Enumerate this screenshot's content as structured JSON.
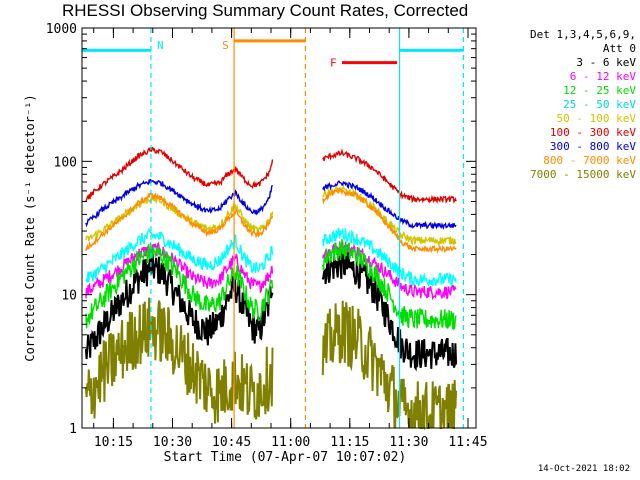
{
  "header": {
    "title": "RHESSI Observing Summary Count Rates, Corrected"
  },
  "legend": {
    "detectors": "Det 1,3,4,5,6,9,",
    "attenuator": "Att 0",
    "entries": [
      {
        "label": "3 - 6 keV",
        "color": "#000000"
      },
      {
        "label": "6 - 12 keV",
        "color": "#ff00ff"
      },
      {
        "label": "12 - 25 keV",
        "color": "#00dd00"
      },
      {
        "label": "25 - 50 keV",
        "color": "#00ffff"
      },
      {
        "label": "50 - 100 keV",
        "color": "#d4c400"
      },
      {
        "label": "100 - 300 keV",
        "color": "#e00000"
      },
      {
        "label": "300 - 800 keV",
        "color": "#0000e0"
      },
      {
        "label": "800 - 7000 keV",
        "color": "#ff8c00"
      },
      {
        "label": "7000 - 15000 keV",
        "color": "#808000"
      }
    ]
  },
  "footer": {
    "timestamp": "14-Oct-2021 18:02"
  },
  "chart_data": {
    "type": "line",
    "title": "RHESSI Observing Summary Count Rates, Corrected",
    "xlabel": "Start Time (07-Apr-07 10:07:02)",
    "ylabel": "Corrected Count Rate (s⁻¹ detector⁻¹)",
    "yscale": "log",
    "ylim": [
      1,
      1000
    ],
    "xlim_minutes": [
      0,
      100
    ],
    "x_ticks": [
      {
        "minute": 7.97,
        "label": "10:15"
      },
      {
        "minute": 22.97,
        "label": "10:30"
      },
      {
        "minute": 37.97,
        "label": "10:45"
      },
      {
        "minute": 52.97,
        "label": "11:00"
      },
      {
        "minute": 67.97,
        "label": "11:15"
      },
      {
        "minute": 82.97,
        "label": "11:30"
      },
      {
        "minute": 97.97,
        "label": "11:45"
      }
    ],
    "y_ticks": [
      {
        "value": 1,
        "label": "1"
      },
      {
        "value": 10,
        "label": "10"
      },
      {
        "value": 100,
        "label": "100"
      },
      {
        "value": 1000,
        "label": "1000"
      }
    ],
    "data_gap_minutes": [
      48.5,
      61.0
    ],
    "markers": {
      "night": [
        {
          "type": "bar",
          "from": 0,
          "to": 17.5,
          "level": 680,
          "color": "#00e8ff"
        },
        {
          "type": "vline",
          "at": 17.5,
          "style": "dashed",
          "color": "#00e8ff",
          "label": "N"
        },
        {
          "type": "vline",
          "at": 80.6,
          "style": "solid",
          "color": "#00e8ff"
        },
        {
          "type": "bar",
          "from": 80.6,
          "to": 96.8,
          "level": 680,
          "color": "#00e8ff"
        },
        {
          "type": "vline",
          "at": 96.8,
          "style": "dashed",
          "color": "#00e8ff"
        }
      ],
      "saa": [
        {
          "type": "vline",
          "at": 38.6,
          "style": "solid",
          "color": "#ff8c00",
          "label": "S"
        },
        {
          "type": "bar",
          "from": 38.6,
          "to": 56.7,
          "level": 800,
          "color": "#ff8c00"
        },
        {
          "type": "vline",
          "at": 56.7,
          "style": "dashed",
          "color": "#ff8c00"
        }
      ],
      "flare": [
        {
          "type": "bar",
          "from": 66.0,
          "to": 80.0,
          "level": 550,
          "color": "#ff0000",
          "label": "F"
        }
      ]
    },
    "series": [
      {
        "name": "3 - 6 keV",
        "color": "#000000",
        "noise": 0.12,
        "points": [
          [
            1,
            3.6
          ],
          [
            5,
            5.5
          ],
          [
            10,
            9
          ],
          [
            14,
            13
          ],
          [
            17.5,
            16
          ],
          [
            20,
            15
          ],
          [
            24,
            10
          ],
          [
            28,
            6.5
          ],
          [
            32,
            5.2
          ],
          [
            35,
            6.5
          ],
          [
            37,
            9.5
          ],
          [
            39,
            11.5
          ],
          [
            41,
            8
          ],
          [
            43,
            5.8
          ],
          [
            45,
            5.3
          ],
          [
            47.5,
            8.5
          ],
          [
            48.3,
            13
          ],
          [
            61.3,
            15
          ],
          [
            63,
            16
          ],
          [
            66,
            17
          ],
          [
            70,
            15
          ],
          [
            74,
            11
          ],
          [
            78,
            6.5
          ],
          [
            81,
            4.2
          ],
          [
            84,
            3.6
          ],
          [
            90,
            3.6
          ],
          [
            95,
            3.6
          ]
        ]
      },
      {
        "name": "6 - 12 keV",
        "color": "#ff00ff",
        "noise": 0.05,
        "points": [
          [
            1,
            10.5
          ],
          [
            5,
            12.5
          ],
          [
            10,
            16
          ],
          [
            14,
            20
          ],
          [
            17.5,
            22
          ],
          [
            20,
            21.5
          ],
          [
            24,
            17.5
          ],
          [
            28,
            13.5
          ],
          [
            32,
            12
          ],
          [
            35,
            13
          ],
          [
            37,
            16
          ],
          [
            39,
            18.5
          ],
          [
            41,
            14.5
          ],
          [
            43,
            12
          ],
          [
            45,
            11.5
          ],
          [
            47.5,
            14
          ],
          [
            48.3,
            16
          ],
          [
            61.3,
            20
          ],
          [
            63,
            21.5
          ],
          [
            66,
            23
          ],
          [
            70,
            21
          ],
          [
            74,
            17.5
          ],
          [
            78,
            14
          ],
          [
            81,
            11.5
          ],
          [
            84,
            10.5
          ],
          [
            90,
            10.5
          ],
          [
            95,
            10.5
          ]
        ]
      },
      {
        "name": "12 - 25 keV",
        "color": "#00dd00",
        "noise": 0.08,
        "points": [
          [
            1,
            6.5
          ],
          [
            5,
            9
          ],
          [
            10,
            13.5
          ],
          [
            14,
            18
          ],
          [
            17.5,
            21
          ],
          [
            20,
            20
          ],
          [
            24,
            15
          ],
          [
            28,
            10
          ],
          [
            32,
            8
          ],
          [
            35,
            9
          ],
          [
            37,
            12
          ],
          [
            39,
            15
          ],
          [
            41,
            11
          ],
          [
            43,
            8
          ],
          [
            45,
            7.5
          ],
          [
            47.5,
            10.5
          ],
          [
            48.3,
            12
          ],
          [
            61.3,
            18
          ],
          [
            63,
            20.5
          ],
          [
            66,
            22
          ],
          [
            70,
            19.5
          ],
          [
            74,
            15
          ],
          [
            78,
            10
          ],
          [
            81,
            7
          ],
          [
            84,
            6.5
          ],
          [
            90,
            6.5
          ],
          [
            95,
            6.5
          ]
        ]
      },
      {
        "name": "25 - 50 keV",
        "color": "#00ffff",
        "noise": 0.05,
        "points": [
          [
            1,
            13
          ],
          [
            5,
            15.5
          ],
          [
            10,
            20
          ],
          [
            14,
            25
          ],
          [
            17.5,
            28
          ],
          [
            20,
            27
          ],
          [
            24,
            22.5
          ],
          [
            28,
            18.5
          ],
          [
            32,
            16.5
          ],
          [
            35,
            18
          ],
          [
            37,
            22
          ],
          [
            39,
            25.5
          ],
          [
            41,
            19
          ],
          [
            43,
            16
          ],
          [
            45,
            15.5
          ],
          [
            47.5,
            19
          ],
          [
            48.3,
            22
          ],
          [
            61.3,
            25
          ],
          [
            63,
            27
          ],
          [
            66,
            29
          ],
          [
            70,
            26
          ],
          [
            74,
            22
          ],
          [
            78,
            17.5
          ],
          [
            81,
            14.5
          ],
          [
            84,
            13
          ],
          [
            90,
            13
          ],
          [
            95,
            13
          ]
        ]
      },
      {
        "name": "50 - 100 keV",
        "color": "#d4c400",
        "noise": 0.03,
        "points": [
          [
            1,
            25.5
          ],
          [
            5,
            30
          ],
          [
            10,
            38
          ],
          [
            14,
            47
          ],
          [
            17.5,
            53
          ],
          [
            20,
            51
          ],
          [
            24,
            42
          ],
          [
            28,
            35
          ],
          [
            32,
            31
          ],
          [
            35,
            33
          ],
          [
            37,
            40
          ],
          [
            39,
            47
          ],
          [
            41,
            37
          ],
          [
            43,
            31.5
          ],
          [
            45,
            30
          ],
          [
            47.5,
            36
          ],
          [
            48.3,
            42
          ],
          [
            61.3,
            56
          ],
          [
            63,
            60
          ],
          [
            66,
            61
          ],
          [
            70,
            55
          ],
          [
            74,
            45
          ],
          [
            78,
            34
          ],
          [
            81,
            28
          ],
          [
            84,
            25.5
          ],
          [
            90,
            25.5
          ],
          [
            95,
            25.5
          ]
        ]
      },
      {
        "name": "100 - 300 keV",
        "color": "#e00000",
        "noise": 0.02,
        "points": [
          [
            1,
            52
          ],
          [
            5,
            66
          ],
          [
            10,
            85
          ],
          [
            14,
            108
          ],
          [
            17.5,
            122
          ],
          [
            20,
            118
          ],
          [
            24,
            95
          ],
          [
            28,
            76
          ],
          [
            32,
            66
          ],
          [
            35,
            69
          ],
          [
            37,
            80
          ],
          [
            39,
            88
          ],
          [
            41,
            74
          ],
          [
            43,
            66
          ],
          [
            45,
            67
          ],
          [
            47.5,
            82
          ],
          [
            48.3,
            100
          ],
          [
            61.3,
            104
          ],
          [
            63,
            110
          ],
          [
            66,
            115
          ],
          [
            70,
            104
          ],
          [
            74,
            88
          ],
          [
            78,
            68
          ],
          [
            81,
            56
          ],
          [
            84,
            52
          ],
          [
            90,
            52
          ],
          [
            95,
            52
          ]
        ]
      },
      {
        "name": "300 - 800 keV",
        "color": "#0000e0",
        "noise": 0.02,
        "points": [
          [
            1,
            34
          ],
          [
            5,
            43
          ],
          [
            10,
            54
          ],
          [
            14,
            65
          ],
          [
            17.5,
            71
          ],
          [
            20,
            69
          ],
          [
            24,
            58
          ],
          [
            28,
            48
          ],
          [
            32,
            42
          ],
          [
            35,
            44
          ],
          [
            37,
            52
          ],
          [
            39,
            58
          ],
          [
            41,
            48
          ],
          [
            43,
            42
          ],
          [
            45,
            42
          ],
          [
            47.5,
            52
          ],
          [
            48.3,
            66
          ],
          [
            61.3,
            62
          ],
          [
            63,
            66
          ],
          [
            66,
            69
          ],
          [
            70,
            63
          ],
          [
            74,
            53
          ],
          [
            78,
            42
          ],
          [
            81,
            36
          ],
          [
            84,
            33
          ],
          [
            90,
            33
          ],
          [
            95,
            33
          ]
        ]
      },
      {
        "name": "800 - 7000 keV",
        "color": "#ff8c00",
        "noise": 0.02,
        "points": [
          [
            1,
            22
          ],
          [
            5,
            28
          ],
          [
            10,
            37
          ],
          [
            14,
            48
          ],
          [
            17.5,
            56
          ],
          [
            20,
            53
          ],
          [
            24,
            43
          ],
          [
            28,
            34
          ],
          [
            32,
            29
          ],
          [
            35,
            31
          ],
          [
            37,
            37
          ],
          [
            39,
            42
          ],
          [
            41,
            34
          ],
          [
            43,
            29
          ],
          [
            45,
            28
          ],
          [
            47.5,
            34
          ],
          [
            48.3,
            40
          ],
          [
            61.3,
            52
          ],
          [
            63,
            57
          ],
          [
            66,
            60
          ],
          [
            70,
            55
          ],
          [
            74,
            44
          ],
          [
            78,
            32
          ],
          [
            81,
            25
          ],
          [
            84,
            22
          ],
          [
            90,
            22
          ],
          [
            95,
            22
          ]
        ]
      },
      {
        "name": "7000 - 15000 keV",
        "color": "#808000",
        "noise": 0.25,
        "points": [
          [
            1,
            1.6
          ],
          [
            5,
            2.5
          ],
          [
            10,
            3.8
          ],
          [
            14,
            5
          ],
          [
            17.5,
            5.6
          ],
          [
            20,
            5.3
          ],
          [
            24,
            4
          ],
          [
            28,
            2.8
          ],
          [
            32,
            2
          ],
          [
            35,
            1.8
          ],
          [
            37,
            2.1
          ],
          [
            39,
            2.4
          ],
          [
            41,
            2
          ],
          [
            43,
            1.8
          ],
          [
            45,
            2
          ],
          [
            47.5,
            2.4
          ],
          [
            48.3,
            2.6
          ],
          [
            61.3,
            3.5
          ],
          [
            63,
            4.5
          ],
          [
            66,
            5.5
          ],
          [
            70,
            4.5
          ],
          [
            74,
            3.2
          ],
          [
            78,
            2
          ],
          [
            81,
            1.4
          ],
          [
            84,
            1.3
          ],
          [
            90,
            1.3
          ],
          [
            95,
            1.3
          ]
        ]
      }
    ]
  }
}
